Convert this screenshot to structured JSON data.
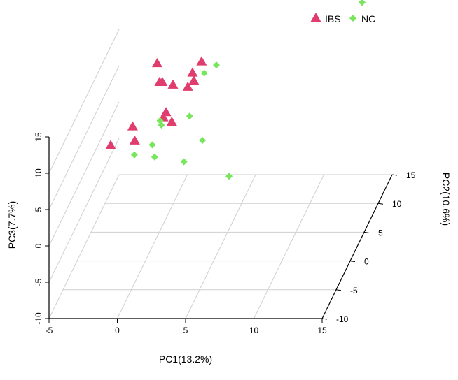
{
  "chart_data": {
    "type": "scatter",
    "projection": "3d",
    "xlabel": "PC1(13.2%)",
    "ylabel": "PC2(10.6%)",
    "zlabel": "PC3(7.7%)",
    "xlim": [
      -5,
      15
    ],
    "ylim": [
      -10,
      15
    ],
    "zlim": [
      -10,
      15
    ],
    "x_ticks": [
      "-5",
      "0",
      "5",
      "10",
      "15"
    ],
    "y_ticks": [
      "-10",
      "-5",
      "0",
      "5",
      "10",
      "15"
    ],
    "z_ticks": [
      "-10",
      "-5",
      "0",
      "5",
      "10",
      "15"
    ],
    "grid": true,
    "legend_position": "top-right",
    "series": [
      {
        "name": "IBS",
        "marker": "triangle",
        "color": "#E03C6E",
        "points": [
          {
            "x": 2.6,
            "y": 6.9,
            "z": 24.5
          },
          {
            "x": -0.3,
            "y": 5.7,
            "z": 12.7
          },
          {
            "x": 2.5,
            "y": 7.9,
            "z": 11.2
          },
          {
            "x": 0.0,
            "y": 5.1,
            "z": 10.6
          },
          {
            "x": 0.2,
            "y": 5.1,
            "z": 10.6
          },
          {
            "x": 1.0,
            "y": 5.0,
            "z": 10.3
          },
          {
            "x": 2.0,
            "y": 7.1,
            "z": 10.3
          },
          {
            "x": 2.2,
            "y": 6.6,
            "z": 9.6
          },
          {
            "x": 1.8,
            "y": 6.4,
            "z": 8.9
          },
          {
            "x": 0.8,
            "y": 3.5,
            "z": 7.7
          },
          {
            "x": 0.6,
            "y": 3.5,
            "z": 7.0
          },
          {
            "x": -1.4,
            "y": 2.3,
            "z": 6.7
          },
          {
            "x": 1.2,
            "y": 3.6,
            "z": 6.3
          },
          {
            "x": -1.0,
            "y": 1.1,
            "z": 5.7
          },
          {
            "x": -2.6,
            "y": 0.3,
            "z": 5.7
          }
        ]
      },
      {
        "name": "NC",
        "marker": "diamond",
        "color": "#77E65C",
        "points": [
          {
            "x": 14.8,
            "y": 14.9,
            "z": 15.4
          },
          {
            "x": 13.7,
            "y": 10.6,
            "z": 17.2
          },
          {
            "x": 3.4,
            "y": 8.8,
            "z": 10.0
          },
          {
            "x": 2.8,
            "y": 7.4,
            "z": 10.0
          },
          {
            "x": 0.3,
            "y": 3.8,
            "z": 6.3
          },
          {
            "x": 0.4,
            "y": 3.8,
            "z": 5.7
          },
          {
            "x": 2.1,
            "y": 5.6,
            "z": 5.5
          },
          {
            "x": 3.1,
            "y": 5.3,
            "z": 2.4
          },
          {
            "x": 0.2,
            "y": 1.5,
            "z": 4.8
          },
          {
            "x": -0.8,
            "y": 0.0,
            "z": 4.6
          },
          {
            "x": 0.5,
            "y": 0.9,
            "z": 3.6
          },
          {
            "x": 2.4,
            "y": 2.1,
            "z": 2.0
          },
          {
            "x": 5.7,
            "y": 2.1,
            "z": 0.0
          }
        ]
      }
    ]
  }
}
